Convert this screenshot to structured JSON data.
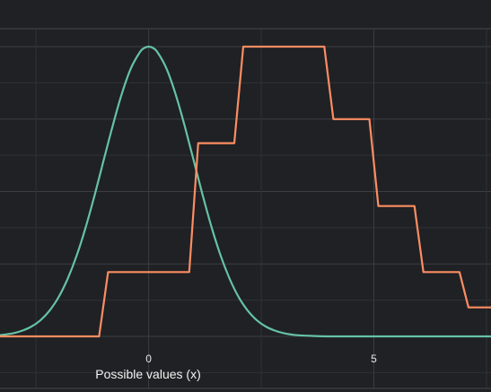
{
  "chart_data": {
    "type": "line",
    "xlabel": "Possible values (x)",
    "ylabel": "",
    "xlim": [
      -3.3,
      7.6
    ],
    "ylim": [
      0,
      1
    ],
    "x_ticks": [
      0,
      5
    ],
    "x_tick_labels": [
      "0",
      "5"
    ],
    "grid": true,
    "legend": "none",
    "series": [
      {
        "color": "#66c2a5",
        "shape": "smooth",
        "x": [
          -3.3,
          -3.0,
          -2.8,
          -2.6,
          -2.4,
          -2.2,
          -2.0,
          -1.8,
          -1.6,
          -1.4,
          -1.2,
          -1.0,
          -0.8,
          -0.6,
          -0.4,
          -0.2,
          -0.1,
          0.0,
          0.1,
          0.2,
          0.4,
          0.6,
          0.8,
          1.0,
          1.2,
          1.4,
          1.6,
          1.8,
          2.0,
          2.2,
          2.4,
          2.6,
          2.8,
          3.0,
          3.3,
          3.6,
          4.0,
          5.0,
          6.0,
          7.6
        ],
        "y": [
          0.004,
          0.011,
          0.02,
          0.034,
          0.056,
          0.089,
          0.135,
          0.198,
          0.278,
          0.375,
          0.487,
          0.607,
          0.726,
          0.835,
          0.923,
          0.98,
          0.995,
          1.0,
          0.995,
          0.98,
          0.923,
          0.835,
          0.726,
          0.607,
          0.487,
          0.375,
          0.278,
          0.198,
          0.135,
          0.089,
          0.056,
          0.034,
          0.02,
          0.011,
          0.004,
          0.002,
          0.0,
          0.0,
          0.0,
          0.0
        ]
      },
      {
        "color": "#fc8d62",
        "shape": "linear",
        "x": [
          -3.3,
          -1.1,
          -0.9,
          0.9,
          1.1,
          1.9,
          2.1,
          3.9,
          4.1,
          4.9,
          5.1,
          5.9,
          6.1,
          6.9,
          7.1,
          7.6
        ],
        "y": [
          0.0,
          0.0,
          0.222,
          0.222,
          0.667,
          0.667,
          1.0,
          1.0,
          0.75,
          0.75,
          0.45,
          0.45,
          0.222,
          0.222,
          0.1,
          0.1
        ]
      }
    ]
  }
}
